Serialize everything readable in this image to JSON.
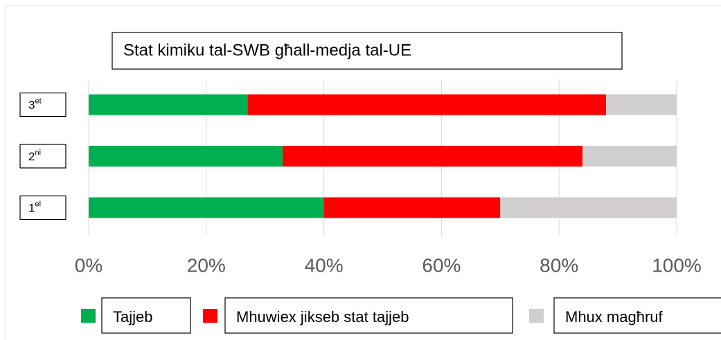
{
  "chart_data": {
    "type": "stacked_barh",
    "title": "Stat kimiku tal-SWB għall-medja tal-UE",
    "categories": [
      "1el",
      "2ni",
      "3et"
    ],
    "series": [
      {
        "name": "Tajjeb",
        "color": "#00b050",
        "values": [
          40,
          33,
          27
        ]
      },
      {
        "name": "Mhuwiex jikseb stat tajjeb",
        "color": "#ff0000",
        "values": [
          30,
          51,
          61
        ]
      },
      {
        "name": "Mhux magħruf",
        "color": "#d0cece",
        "values": [
          30,
          16,
          12
        ]
      }
    ],
    "xlim": [
      0,
      100
    ],
    "xticks": [
      {
        "value": 0,
        "label": "0%"
      },
      {
        "value": 20,
        "label": "20%"
      },
      {
        "value": 40,
        "label": "40%"
      },
      {
        "value": 60,
        "label": "60%"
      },
      {
        "value": 80,
        "label": "80%"
      },
      {
        "value": 100,
        "label": "100%"
      }
    ],
    "grid": true
  }
}
